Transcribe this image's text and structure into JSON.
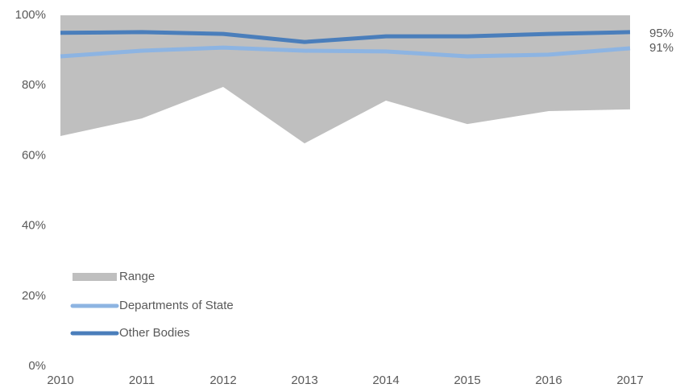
{
  "chart_data": {
    "type": "range_line",
    "categories": [
      "2010",
      "2011",
      "2012",
      "2013",
      "2014",
      "2015",
      "2016",
      "2017"
    ],
    "range": {
      "name": "Range",
      "color": "#bfbfbf",
      "low": [
        65.6,
        70.6,
        79.6,
        63.5,
        75.7,
        69.0,
        72.7,
        73.2
      ],
      "high": [
        100,
        100,
        100,
        100,
        100,
        100,
        100,
        100
      ]
    },
    "series": [
      {
        "name": "Departments of State",
        "color": "#8db4e2",
        "values": [
          88.3,
          89.9,
          90.8,
          89.9,
          89.7,
          88.3,
          88.8,
          90.6
        ],
        "end_label": "91%"
      },
      {
        "name": "Other Bodies",
        "color": "#4a7ebb",
        "values": [
          95.0,
          95.2,
          94.7,
          92.4,
          94.0,
          94.0,
          94.7,
          95.2
        ],
        "end_label": "95%"
      }
    ],
    "ylim": [
      0,
      100
    ],
    "yticks": [
      {
        "value": 0,
        "label": "0%"
      },
      {
        "value": 20,
        "label": "20%"
      },
      {
        "value": 40,
        "label": "40%"
      },
      {
        "value": 60,
        "label": "60%"
      },
      {
        "value": 80,
        "label": "80%"
      },
      {
        "value": 100,
        "label": "100%"
      }
    ],
    "legend": "lower left"
  }
}
